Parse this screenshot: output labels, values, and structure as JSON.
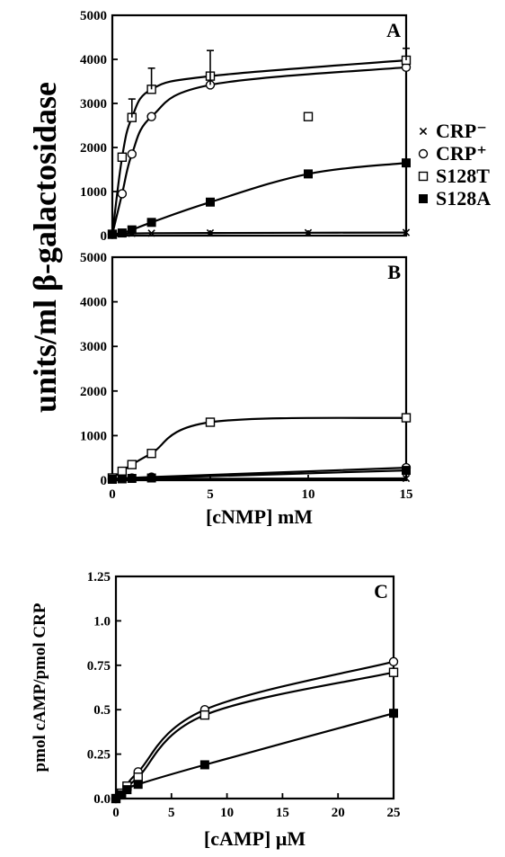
{
  "figure": {
    "ylabel_ab": "units/ml β-galactosidase",
    "xlabel_ab": "[cNMP] mM",
    "legend": [
      {
        "label": "CRP⁻",
        "marker": "cross"
      },
      {
        "label": "CRP⁺",
        "marker": "open-circle"
      },
      {
        "label": "S128T",
        "marker": "open-square"
      },
      {
        "label": "S128A",
        "marker": "filled-square"
      }
    ]
  },
  "chart_data": [
    {
      "panel": "A",
      "type": "line",
      "xlabel": "[cNMP] mM",
      "ylabel": "units/ml β-galactosidase",
      "xlim": [
        0,
        15
      ],
      "ylim": [
        0,
        5000
      ],
      "xticks": [
        0,
        5,
        10,
        15
      ],
      "yticks": [
        0,
        1000,
        2000,
        3000,
        4000,
        5000
      ],
      "grid": false,
      "series": [
        {
          "name": "CRP⁻",
          "marker": "cross",
          "x": [
            0,
            0.5,
            1,
            2,
            5,
            10,
            15
          ],
          "y": [
            30,
            40,
            50,
            55,
            60,
            65,
            70
          ]
        },
        {
          "name": "CRP⁺",
          "marker": "open-circle",
          "x": [
            0,
            0.5,
            1,
            2,
            5,
            15
          ],
          "y": [
            30,
            950,
            1850,
            2700,
            3420,
            3820
          ]
        },
        {
          "name": "S128T",
          "marker": "open-square",
          "x": [
            0,
            0.5,
            1,
            2,
            5,
            15
          ],
          "y": [
            30,
            1780,
            2680,
            3320,
            3620,
            3980
          ],
          "outliers": [
            {
              "x": 10,
              "y": 2700
            }
          ]
        },
        {
          "name": "S128A",
          "marker": "filled-square",
          "x": [
            0,
            0.5,
            1,
            2,
            5,
            10,
            15
          ],
          "y": [
            30,
            60,
            130,
            300,
            760,
            1400,
            1650
          ]
        }
      ]
    },
    {
      "panel": "B",
      "type": "line",
      "xlabel": "[cNMP] mM",
      "ylabel": "units/ml β-galactosidase",
      "xlim": [
        0,
        15
      ],
      "ylim": [
        0,
        5000
      ],
      "xticks": [
        0,
        5,
        10,
        15
      ],
      "yticks": [
        0,
        1000,
        2000,
        3000,
        4000,
        5000
      ],
      "grid": false,
      "series": [
        {
          "name": "CRP⁻",
          "marker": "cross",
          "x": [
            0,
            0.5,
            1,
            2,
            15
          ],
          "y": [
            20,
            25,
            30,
            30,
            40
          ]
        },
        {
          "name": "CRP⁺",
          "marker": "open-circle",
          "x": [
            0,
            0.5,
            1,
            2,
            15
          ],
          "y": [
            30,
            40,
            50,
            70,
            280
          ]
        },
        {
          "name": "S128T",
          "marker": "open-square",
          "x": [
            0,
            0.5,
            1,
            2,
            5,
            15
          ],
          "y": [
            50,
            200,
            350,
            600,
            1300,
            1400
          ]
        },
        {
          "name": "S128A",
          "marker": "filled-square",
          "x": [
            0,
            0.5,
            1,
            2,
            15
          ],
          "y": [
            20,
            30,
            40,
            50,
            220
          ]
        }
      ]
    },
    {
      "panel": "C",
      "type": "line",
      "xlabel": "[cAMP] μM",
      "ylabel": "pmol cAMP/pmol CRP",
      "xlim": [
        0,
        25
      ],
      "ylim": [
        0,
        1.25
      ],
      "xticks": [
        0,
        5,
        10,
        15,
        20,
        25
      ],
      "yticks": [
        0.0,
        0.25,
        0.5,
        0.75,
        1.0,
        1.25
      ],
      "ytick_labels": [
        "0.0",
        "0.25",
        "0.5",
        "0.75",
        "1.0",
        "1.25"
      ],
      "grid": false,
      "series": [
        {
          "name": "CRP⁺",
          "marker": "open-circle",
          "x": [
            0,
            0.5,
            1,
            2,
            8,
            25
          ],
          "y": [
            0.0,
            0.03,
            0.07,
            0.15,
            0.5,
            0.77
          ]
        },
        {
          "name": "S128T",
          "marker": "open-square",
          "x": [
            0,
            0.5,
            1,
            2,
            8,
            25
          ],
          "y": [
            0.0,
            0.03,
            0.07,
            0.12,
            0.47,
            0.71
          ]
        },
        {
          "name": "S128A",
          "marker": "filled-square",
          "x": [
            0,
            0.5,
            1,
            2,
            8,
            25
          ],
          "y": [
            0.0,
            0.02,
            0.05,
            0.08,
            0.19,
            0.48
          ]
        }
      ]
    }
  ]
}
